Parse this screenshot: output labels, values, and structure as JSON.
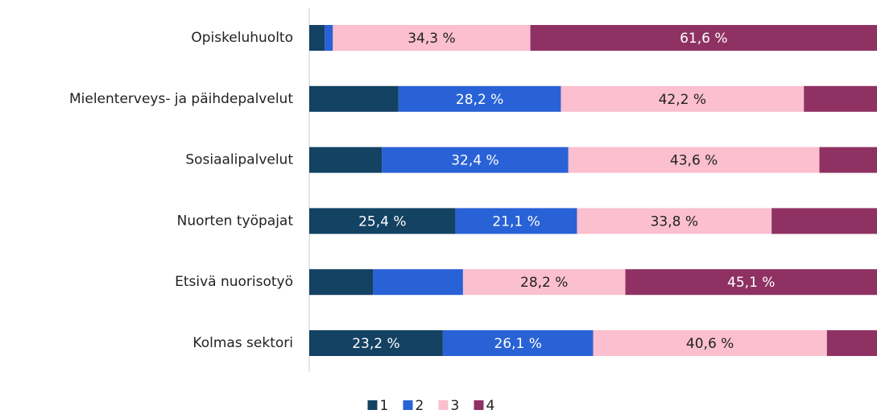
{
  "chart_data": {
    "type": "stacked-bar-horizontal",
    "categories": [
      "Opiskeluhuolto",
      "Mielenterveys- ja päihdepalvelut",
      "Sosiaalipalvelut",
      "Nuorten työpajat",
      "Etsivä nuorisotyö",
      "Kolmas sektori"
    ],
    "xlim": [
      0,
      100
    ],
    "series": [
      {
        "name": "1",
        "color": "#134263",
        "values": [
          2.7,
          15.5,
          12.6,
          25.4,
          11.1,
          23.2
        ],
        "value_labels": [
          null,
          null,
          null,
          "25,4 %",
          null,
          "23,2 %"
        ]
      },
      {
        "name": "2",
        "color": "#2962d6",
        "values": [
          1.4,
          28.2,
          32.4,
          21.1,
          15.6,
          26.1
        ],
        "value_labels": [
          null,
          "28,2 %",
          "32,4 %",
          "21,1 %",
          null,
          "26,1 %"
        ]
      },
      {
        "name": "3",
        "color": "#fbbfcf",
        "values": [
          34.3,
          42.2,
          43.6,
          33.8,
          28.2,
          40.6
        ],
        "value_labels": [
          "34,3 %",
          "42,2 %",
          "43,6 %",
          "33,8 %",
          "28,2 %",
          "40,6 %"
        ]
      },
      {
        "name": "4",
        "color": "#8f3263",
        "values": [
          61.6,
          14.1,
          11.4,
          19.7,
          45.1,
          10.1
        ],
        "value_labels": [
          "61,6 %",
          null,
          null,
          null,
          "45,1 %",
          null
        ]
      }
    ],
    "legend": "bottom"
  }
}
